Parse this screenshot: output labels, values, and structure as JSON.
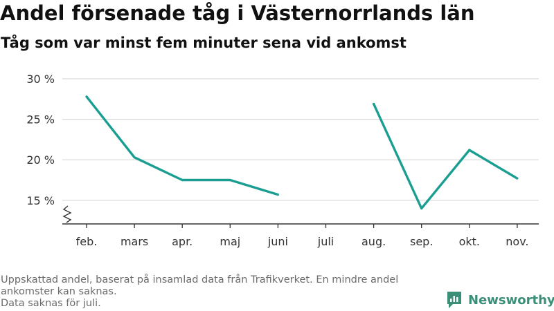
{
  "header": {
    "title": "Andel försenade tåg i Västernorrlands län",
    "subtitle": "Tåg som var minst fem minuter sena vid ankomst"
  },
  "footnote": {
    "line1": "Uppskattad andel, baserat på insamlad data från Trafikverket. En mindre andel ankomster kan saknas.",
    "line2": "Data saknas för juli."
  },
  "brand": {
    "name": "Newsworthy",
    "icon": "newsworthy-logo-icon",
    "color": "#3a8f78"
  },
  "colors": {
    "line": "#1a9e92",
    "grid": "#d9d9d9",
    "axis": "#333333"
  },
  "chart_data": {
    "type": "line",
    "categories": [
      "feb.",
      "mars",
      "apr.",
      "maj",
      "juni",
      "juli",
      "aug.",
      "sep.",
      "okt.",
      "nov."
    ],
    "values": [
      27.8,
      20.3,
      17.5,
      17.5,
      15.7,
      null,
      26.9,
      14.0,
      21.2,
      17.7
    ],
    "ylim": [
      12.5,
      30
    ],
    "yticks": [
      15,
      20,
      25,
      30
    ],
    "ytick_labels": [
      "15 %",
      "20 %",
      "25 %",
      "30 %"
    ],
    "axis_break": true,
    "grid": true,
    "xlabel": "",
    "ylabel": ""
  }
}
